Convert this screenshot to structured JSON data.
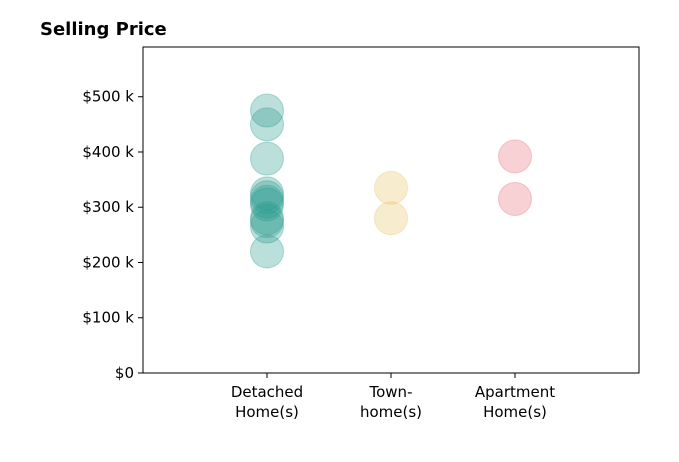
{
  "chart_data": {
    "type": "scatter",
    "title": "Selling Price",
    "xlabel": "",
    "ylabel": "",
    "ylim": [
      0,
      590000
    ],
    "grid": false,
    "y_ticks": [
      {
        "value": 0,
        "label": "$0"
      },
      {
        "value": 100000,
        "label": "$100 k"
      },
      {
        "value": 200000,
        "label": "$200 k"
      },
      {
        "value": 300000,
        "label": "$300 k"
      },
      {
        "value": 400000,
        "label": "$400 k"
      },
      {
        "value": 500000,
        "label": "$500 k"
      }
    ],
    "categories": [
      {
        "label_lines": [
          "Detached",
          "Home(s)"
        ]
      },
      {
        "label_lines": [
          "Town-",
          "home(s)"
        ]
      },
      {
        "label_lines": [
          "Apartment",
          "Home(s)"
        ]
      }
    ],
    "series": [
      {
        "category_index": 0,
        "color": "#2a9d8f",
        "values": [
          475000,
          450000,
          388000,
          325000,
          318000,
          310000,
          305000,
          280000,
          275000,
          265000,
          220000
        ]
      },
      {
        "category_index": 1,
        "color": "#e9c46a",
        "values": [
          335000,
          280000
        ]
      },
      {
        "category_index": 2,
        "color": "#e76f7a",
        "values": [
          392000,
          315000
        ]
      }
    ]
  }
}
